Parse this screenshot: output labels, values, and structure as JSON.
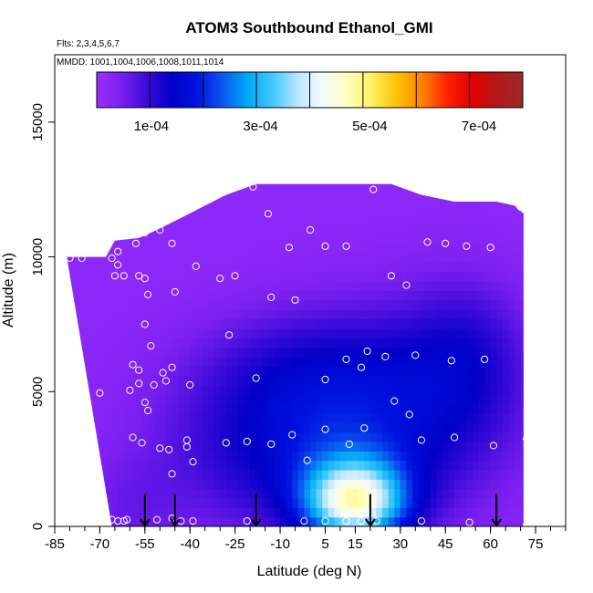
{
  "chart_data": {
    "type": "heatmap",
    "title": "ATOM3 Southbound Ethanol_GMI",
    "flights_note": "Flts: 2,3,4,5,6,7",
    "dates_note": "MMDD: 1001,1004,1006,1008,1011,1014",
    "xlabel": "Latitude (deg N)",
    "ylabel": "Altitude (m)",
    "xlim": [
      -85,
      85
    ],
    "ylim": [
      0,
      17500
    ],
    "x_ticks": [
      -85,
      -70,
      -55,
      -40,
      -25,
      -10,
      5,
      15,
      30,
      45,
      60,
      75
    ],
    "x_tick_labels": [
      "-85",
      "-70",
      "-55",
      "-40",
      "-25",
      "-10",
      "5",
      "15",
      "30",
      "45",
      "60",
      "75"
    ],
    "y_ticks": [
      0,
      5000,
      10000,
      15000
    ],
    "y_tick_labels": [
      "0",
      "5000",
      "10000",
      "15000"
    ],
    "colorbar": {
      "range": [
        0,
        0.00078
      ],
      "ticks": [
        0.0001,
        0.0003,
        0.0005,
        0.0007
      ],
      "tick_labels": [
        "1e-04",
        "3e-04",
        "5e-04",
        "7e-04"
      ],
      "colors": [
        "#9b30ff",
        "#7a1ff0",
        "#3a0ad8",
        "#0000c8",
        "#0012e0",
        "#0a55f0",
        "#00a8f5",
        "#3fc7ff",
        "#b9e6ff",
        "#f4fbff",
        "#ffffc0",
        "#fff060",
        "#ffc000",
        "#ff8000",
        "#ff2000",
        "#e00000",
        "#b01818",
        "#9b2a2a"
      ]
    },
    "flight_markers_lat": [
      -55,
      -45,
      -18,
      20,
      62
    ],
    "data_outline_lat": [
      [
        -81,
        10000
      ],
      [
        -68,
        10000
      ],
      [
        -65,
        10600
      ],
      [
        -57,
        10700
      ],
      [
        -51,
        11000
      ],
      [
        -42,
        11500
      ],
      [
        -35,
        11900
      ],
      [
        -28,
        12300
      ],
      [
        -18,
        12700
      ],
      [
        5,
        12700
      ],
      [
        27,
        12700
      ],
      [
        37,
        12300
      ],
      [
        48,
        12050
      ],
      [
        62,
        12050
      ],
      [
        68,
        11900
      ],
      [
        71,
        11600
      ],
      [
        71,
        0
      ],
      [
        -66,
        0
      ]
    ],
    "field_blobs": [
      {
        "lat": -5,
        "alt": 3000,
        "s_lat": 30,
        "s_alt": 2300,
        "amp": 0.00011
      },
      {
        "lat": -5,
        "alt": 6000,
        "s_lat": 25,
        "s_alt": 1500,
        "amp": 4e-05
      },
      {
        "lat": 30,
        "alt": 4500,
        "s_lat": 28,
        "s_alt": 2600,
        "amp": 9e-05
      },
      {
        "lat": 52,
        "alt": 6500,
        "s_lat": 14,
        "s_alt": 2000,
        "amp": 6e-05
      },
      {
        "lat": -60,
        "alt": 500,
        "s_lat": 12,
        "s_alt": 1500,
        "amp": 3e-05
      },
      {
        "lat": 15,
        "alt": 700,
        "s_lat": 12,
        "s_alt": 900,
        "amp": 0.0003
      },
      {
        "lat": 15,
        "alt": 1800,
        "s_lat": 12,
        "s_alt": 900,
        "amp": 0.00012
      }
    ],
    "field_background": 2e-05,
    "points": [
      [
        -80,
        9950
      ],
      [
        -76,
        9950
      ],
      [
        -66,
        9950
      ],
      [
        -64,
        10200
      ],
      [
        -64,
        9700
      ],
      [
        -58,
        10500
      ],
      [
        -65,
        9300
      ],
      [
        -62,
        9300
      ],
      [
        -57,
        9300
      ],
      [
        -55,
        9200
      ],
      [
        -55,
        10900
      ],
      [
        -50,
        11000
      ],
      [
        -46,
        10500
      ],
      [
        -38,
        9650
      ],
      [
        -30,
        9200
      ],
      [
        -25,
        9300
      ],
      [
        -19,
        12600
      ],
      [
        -14,
        11600
      ],
      [
        -7,
        10350
      ],
      [
        0,
        11000
      ],
      [
        5,
        10400
      ],
      [
        12,
        10400
      ],
      [
        21,
        12500
      ],
      [
        27,
        9300
      ],
      [
        32,
        8950
      ],
      [
        39,
        10550
      ],
      [
        45,
        10500
      ],
      [
        52,
        10400
      ],
      [
        60,
        10350
      ],
      [
        70,
        11850
      ],
      [
        -54,
        8600
      ],
      [
        -45,
        8700
      ],
      [
        -55,
        7500
      ],
      [
        -53,
        6700
      ],
      [
        -59,
        6000
      ],
      [
        -57,
        5800
      ],
      [
        -49,
        5700
      ],
      [
        -46,
        5900
      ],
      [
        -27,
        7100
      ],
      [
        -13,
        8500
      ],
      [
        -5,
        8400
      ],
      [
        12,
        6200
      ],
      [
        17,
        5900
      ],
      [
        19,
        6500
      ],
      [
        25,
        6300
      ],
      [
        35,
        6350
      ],
      [
        47,
        6150
      ],
      [
        58,
        6200
      ],
      [
        -70,
        4950
      ],
      [
        -60,
        5050
      ],
      [
        -57,
        5300
      ],
      [
        -52,
        5250
      ],
      [
        -48,
        5400
      ],
      [
        -40,
        5250
      ],
      [
        -18,
        5500
      ],
      [
        5,
        5450
      ],
      [
        28,
        4650
      ],
      [
        33,
        4150
      ],
      [
        -55,
        4600
      ],
      [
        -54,
        4300
      ],
      [
        -59,
        3300
      ],
      [
        -56,
        3100
      ],
      [
        -50,
        2900
      ],
      [
        -47,
        2850
      ],
      [
        -41,
        3200
      ],
      [
        -41,
        2950
      ],
      [
        -28,
        3100
      ],
      [
        -21,
        3150
      ],
      [
        -13,
        3050
      ],
      [
        -6,
        3400
      ],
      [
        5,
        3600
      ],
      [
        13,
        3050
      ],
      [
        18,
        3650
      ],
      [
        37,
        3200
      ],
      [
        48,
        3300
      ],
      [
        61,
        3000
      ],
      [
        72,
        3250
      ],
      [
        -46,
        1950
      ],
      [
        -39,
        2400
      ],
      [
        -1,
        2450
      ],
      [
        -70,
        200
      ],
      [
        -66,
        250
      ],
      [
        -64,
        200
      ],
      [
        -62,
        200
      ],
      [
        -61,
        250
      ],
      [
        -51,
        250
      ],
      [
        -46,
        300
      ],
      [
        -43,
        200
      ],
      [
        -39,
        200
      ],
      [
        -21,
        200
      ],
      [
        -2,
        200
      ],
      [
        5,
        200
      ],
      [
        12,
        200
      ],
      [
        17,
        200
      ],
      [
        22,
        200
      ],
      [
        37,
        200
      ],
      [
        53,
        150
      ],
      [
        72,
        50
      ]
    ]
  }
}
